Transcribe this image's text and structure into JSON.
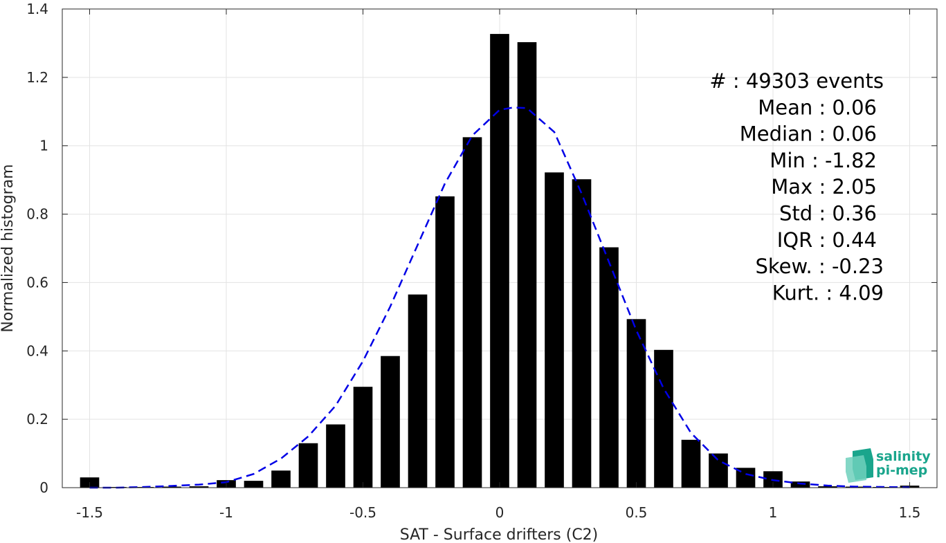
{
  "chart_data": {
    "type": "bar",
    "xlabel": "SAT - Surface drifters (C2)",
    "ylabel": "Normalized histogram",
    "xlim": [
      -1.6,
      1.6
    ],
    "ylim": [
      0,
      1.4
    ],
    "xticks": [
      -1.5,
      -1,
      -0.5,
      0,
      0.5,
      1,
      1.5
    ],
    "xtick_labels": [
      "-1.5",
      "-1",
      "-0.5",
      "0",
      "0.5",
      "1",
      "1.5"
    ],
    "yticks": [
      0,
      0.2,
      0.4,
      0.6,
      0.8,
      1,
      1.2,
      1.4
    ],
    "ytick_labels": [
      "0",
      "0.2",
      "0.4",
      "0.6",
      "0.8",
      "1",
      "1.2",
      "1.4"
    ],
    "grid": true,
    "bar_color": "#000000",
    "fit_color": "#0000e6",
    "x": [
      -1.5,
      -1.4,
      -1.3,
      -1.2,
      -1.1,
      -1.0,
      -0.9,
      -0.8,
      -0.7,
      -0.6,
      -0.5,
      -0.4,
      -0.3,
      -0.2,
      -0.1,
      0.0,
      0.1,
      0.2,
      0.3,
      0.4,
      0.5,
      0.6,
      0.7,
      0.8,
      0.9,
      1.0,
      1.1,
      1.2,
      1.3,
      1.4,
      1.5
    ],
    "values": [
      0.03,
      0.002,
      0.002,
      0.003,
      0.004,
      0.022,
      0.02,
      0.05,
      0.13,
      0.185,
      0.295,
      0.385,
      0.565,
      0.852,
      1.025,
      1.327,
      1.303,
      0.922,
      0.902,
      0.703,
      0.493,
      0.403,
      0.14,
      0.1,
      0.058,
      0.048,
      0.018,
      0.004,
      0.003,
      0.002,
      0.006
    ],
    "fit_curve": {
      "style": "dashed",
      "x": [
        -1.5,
        -1.4,
        -1.3,
        -1.2,
        -1.1,
        -1.0,
        -0.9,
        -0.8,
        -0.7,
        -0.6,
        -0.5,
        -0.4,
        -0.3,
        -0.2,
        -0.1,
        0.0,
        0.05,
        0.1,
        0.2,
        0.3,
        0.4,
        0.5,
        0.6,
        0.7,
        0.8,
        0.9,
        1.0,
        1.1,
        1.2,
        1.3,
        1.4,
        1.5
      ],
      "y": [
        0.0,
        0.0,
        0.002,
        0.005,
        0.009,
        0.016,
        0.04,
        0.085,
        0.15,
        0.24,
        0.37,
        0.53,
        0.71,
        0.89,
        1.03,
        1.105,
        1.112,
        1.11,
        1.04,
        0.86,
        0.66,
        0.46,
        0.29,
        0.16,
        0.08,
        0.04,
        0.022,
        0.012,
        0.006,
        0.003,
        0.002,
        0.001
      ]
    },
    "annotations": [
      "#  : 49303 events",
      "Mean : 0.06",
      "Median : 0.06",
      "Min : -1.82",
      "Max : 2.05",
      "Std : 0.36",
      "IQR : 0.44",
      "Skew. : -0.23",
      "Kurt. : 4.09"
    ]
  },
  "logo": {
    "line1": "salinity",
    "line2": "pi-mep",
    "color": "#1aa58c"
  }
}
